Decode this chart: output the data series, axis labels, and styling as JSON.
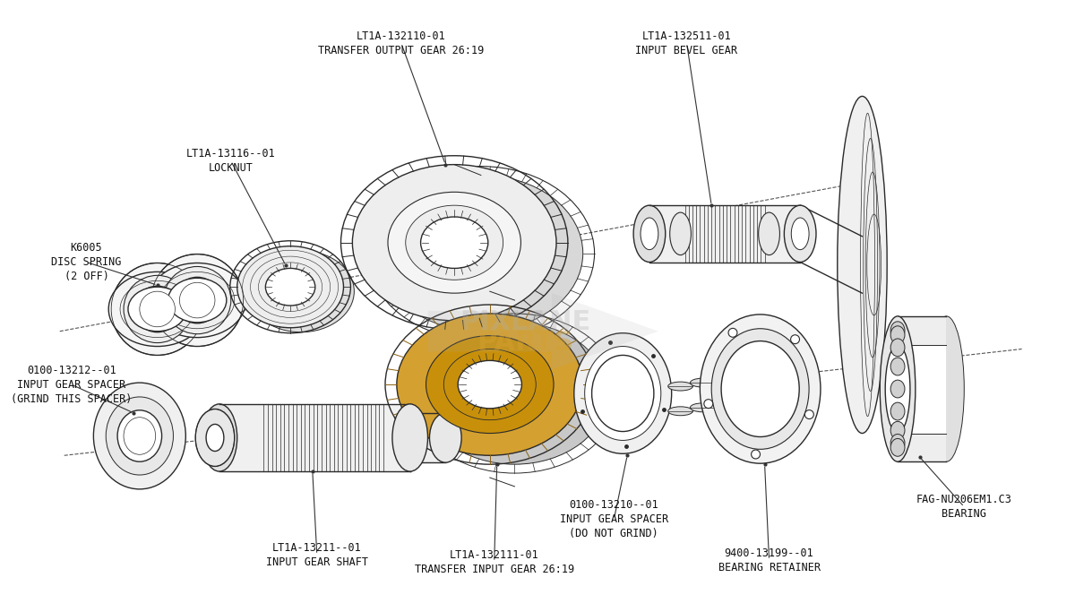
{
  "background_color": "#ffffff",
  "line_color": "#2a2a2a",
  "lw": 1.0,
  "parts": {
    "disc_spring_label": "K6005\nDISC SPRING\n(2 OFF)",
    "locknut_label": "LT1A-13116--01\nLOCKNUT",
    "transfer_output_gear_label": "LT1A-132110-01\nTRANSFER OUTPUT GEAR 26:19",
    "input_bevel_gear_label": "LT1A-132511-01\nINPUT BEVEL GEAR",
    "input_gear_spacer_grind_label": "0100-13212--01\nINPUT GEAR SPACER\n(GRIND THIS SPACER)",
    "input_gear_shaft_label": "LT1A-13211--01\nINPUT GEAR SHAFT",
    "transfer_input_gear_label": "LT1A-132111-01\nTRANSFER INPUT GEAR 26:19",
    "input_gear_spacer_no_grind_label": "0100-13210--01\nINPUT GEAR SPACER\n(DO NOT GRIND)",
    "bearing_retainer_label": "9400-13199--01\nBEARING RETAINER",
    "fag_bearing_label": "FAG-NU206EM1.C3\nBEARING"
  },
  "watermark_color": "#b0b0b0",
  "watermark_alpha": 0.3
}
